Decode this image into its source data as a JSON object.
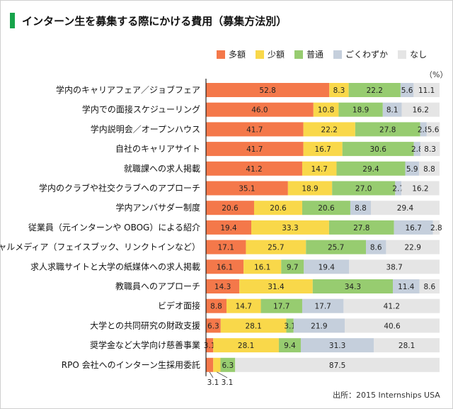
{
  "title": "インターン生を募集する際にかける費用（募集方法別）",
  "unit_label": "（%）",
  "source": "出所：2015 Internships USA",
  "colors": {
    "title_accent": "#16a34a",
    "axis": "#000000"
  },
  "chart_data": {
    "type": "bar",
    "orientation": "horizontal",
    "stacked": true,
    "normalized": true,
    "xlim": [
      0,
      100
    ],
    "legend_position": "top-right",
    "categories": [
      "学内のキャリアフェア／ジョブフェア",
      "学内での面接スケジューリング",
      "学内説明会／オープンハウス",
      "自社のキャリアサイト",
      "就職課への求人掲載",
      "学内のクラブや社交クラブへのアプローチ",
      "学内アンバサダー制度",
      "従業員（元インターンや OBOG）による紹介",
      "ソーシャルメディア（フェイスブック、リンクトインなど）",
      "求人求職サイトと大学の紙媒体への求人掲載",
      "教職員へのアプローチ",
      "ビデオ面接",
      "大学との共同研究の財政支援",
      "奨学金など大学向け慈善事業",
      "RPO 会社へのインターン生採用委託"
    ],
    "series": [
      {
        "name": "多額",
        "color": "#f4784a",
        "values": [
          52.8,
          46.0,
          41.7,
          41.7,
          41.2,
          35.1,
          20.6,
          19.4,
          17.1,
          16.1,
          14.3,
          8.8,
          6.3,
          3.1,
          3.1
        ]
      },
      {
        "name": "少額",
        "color": "#f9d84a",
        "values": [
          8.3,
          10.8,
          22.2,
          16.7,
          14.7,
          18.9,
          20.6,
          33.3,
          25.7,
          16.1,
          31.4,
          14.7,
          28.1,
          28.1,
          3.1
        ]
      },
      {
        "name": "普通",
        "color": "#97cc70",
        "values": [
          22.2,
          18.9,
          27.8,
          30.6,
          29.4,
          27.0,
          20.6,
          27.8,
          25.7,
          9.7,
          34.3,
          17.7,
          3.1,
          9.4,
          6.3
        ]
      },
      {
        "name": "ごくわずか",
        "color": "#c5cfdc",
        "values": [
          5.6,
          8.1,
          2.8,
          2.8,
          5.9,
          2.7,
          8.8,
          16.7,
          8.6,
          19.4,
          11.4,
          17.7,
          21.9,
          31.3,
          0
        ]
      },
      {
        "name": "なし",
        "color": "#e5e5e5",
        "values": [
          11.1,
          16.2,
          5.6,
          8.3,
          8.8,
          16.2,
          29.4,
          2.8,
          22.9,
          38.7,
          8.6,
          41.2,
          40.6,
          28.1,
          87.5
        ]
      }
    ],
    "data_label_texts": [
      [
        "52.8",
        "8.3",
        "22.2",
        "5.6",
        "11.1"
      ],
      [
        "46.0",
        "10.8",
        "18.9",
        "8.1",
        "16.2"
      ],
      [
        "41.7",
        "22.2",
        "27.8",
        "2.8",
        "5.6"
      ],
      [
        "41.7",
        "16.7",
        "30.6",
        "2.8",
        "8.3"
      ],
      [
        "41.2",
        "14.7",
        "29.4",
        "5.9",
        "8.8"
      ],
      [
        "35.1",
        "18.9",
        "27.0",
        "2.7",
        "16.2"
      ],
      [
        "20.6",
        "20.6",
        "20.6",
        "8.8",
        "29.4"
      ],
      [
        "19.4",
        "33.3",
        "27.8",
        "16.7",
        "2.8"
      ],
      [
        "17.1",
        "25.7",
        "25.7",
        "8.6",
        "22.9"
      ],
      [
        "16.1",
        "16.1",
        "9.7",
        "19.4",
        "38.7"
      ],
      [
        "14.3",
        "31.4",
        "34.3",
        "11.4",
        "8.6"
      ],
      [
        "8.8",
        "14.7",
        "17.7",
        "17.7",
        "41.2"
      ],
      [
        "6.3",
        "28.1",
        "3.1",
        "21.9",
        "40.6"
      ],
      [
        "3.1",
        "28.1",
        "9.4",
        "31.3",
        "28.1"
      ],
      [
        "",
        "",
        "6.3",
        "",
        "87.5"
      ]
    ],
    "callouts": [
      "3.1",
      "3.1"
    ]
  }
}
